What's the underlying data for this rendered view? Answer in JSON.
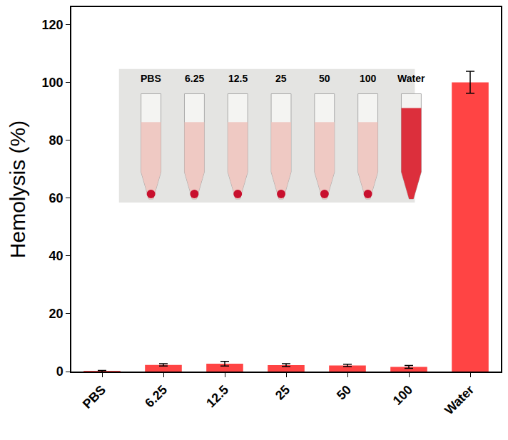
{
  "chart_data": {
    "type": "bar",
    "y_label": "Hemolysis (%)",
    "categories": [
      "PBS",
      "6.25",
      "12.5",
      "25",
      "50",
      "100",
      "Water"
    ],
    "values": [
      0.1,
      2.3,
      2.7,
      2.2,
      2.1,
      1.6,
      100
    ],
    "errors": [
      0.3,
      0.4,
      0.8,
      0.5,
      0.4,
      0.5,
      3.8
    ],
    "color": "#ff4444",
    "ylim": [
      0,
      126
    ],
    "yticks": [
      0,
      20,
      40,
      60,
      80,
      100,
      120
    ],
    "grid": false,
    "annotations": [
      "PBS",
      "6.25",
      "12.5",
      "25",
      "50",
      "100",
      "Water"
    ]
  }
}
